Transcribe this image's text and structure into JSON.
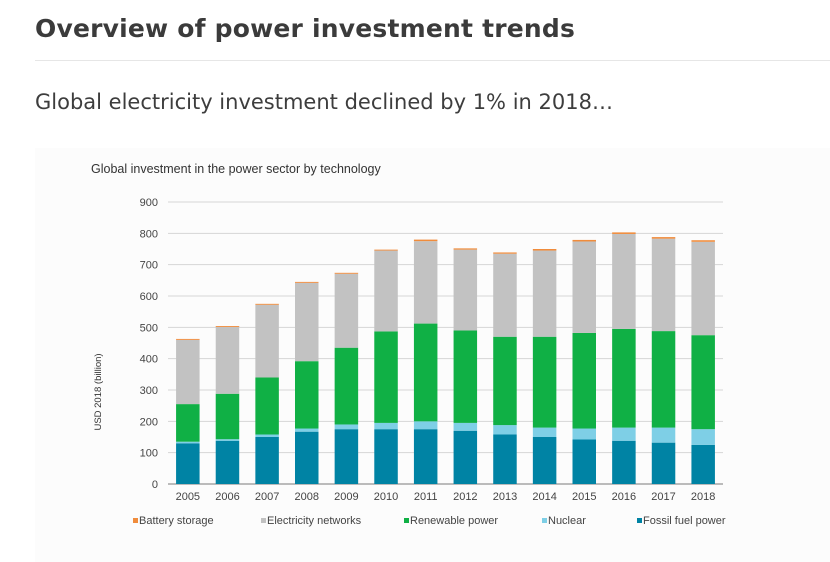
{
  "page": {
    "title": "Overview of power investment trends",
    "subtitle": "Global electricity investment declined by 1% in 2018…"
  },
  "chart_data": {
    "type": "bar",
    "stacked": true,
    "title": "Global investment in the power sector by technology",
    "xlabel": "",
    "ylabel": "USD 2018 (billion)",
    "ylim": [
      0,
      900
    ],
    "yticks": [
      0,
      100,
      200,
      300,
      400,
      500,
      600,
      700,
      800,
      900
    ],
    "grid": true,
    "legend_position": "bottom",
    "categories": [
      "2005",
      "2006",
      "2007",
      "2008",
      "2009",
      "2010",
      "2011",
      "2012",
      "2013",
      "2014",
      "2015",
      "2016",
      "2017",
      "2018"
    ],
    "series": [
      {
        "name": "Fossil fuel power",
        "color": "#0083a4",
        "values": [
          130,
          138,
          150,
          167,
          175,
          175,
          175,
          170,
          158,
          150,
          142,
          138,
          132,
          125
        ]
      },
      {
        "name": "Nuclear",
        "color": "#7ecfe6",
        "values": [
          5,
          5,
          8,
          10,
          15,
          20,
          25,
          25,
          30,
          30,
          35,
          42,
          48,
          50
        ]
      },
      {
        "name": "Renewable power",
        "color": "#10b045",
        "values": [
          120,
          145,
          182,
          215,
          245,
          292,
          312,
          295,
          282,
          290,
          305,
          315,
          308,
          300
        ]
      },
      {
        "name": "Electricity networks",
        "color": "#c2c2c2",
        "values": [
          205,
          213,
          232,
          250,
          236,
          258,
          263,
          258,
          265,
          275,
          292,
          303,
          295,
          298
        ]
      },
      {
        "name": "Battery storage",
        "color": "#f08c3c",
        "values": [
          3,
          3,
          3,
          3,
          3,
          3,
          5,
          4,
          4,
          5,
          5,
          5,
          5,
          5
        ]
      }
    ],
    "legend_order": [
      "Battery storage",
      "Electricity networks",
      "Renewable power",
      "Nuclear",
      "Fossil fuel power"
    ]
  }
}
